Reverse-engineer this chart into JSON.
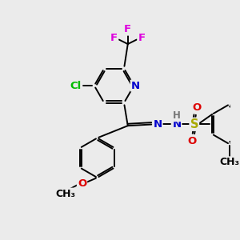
{
  "background_color": "#ebebeb",
  "bond_color": "#000000",
  "atom_colors": {
    "F": "#dd00dd",
    "Cl": "#00bb00",
    "N": "#0000cc",
    "O": "#dd0000",
    "S": "#aaaa00",
    "H": "#777777"
  },
  "font_size": 9.5,
  "figsize": [
    3.0,
    3.0
  ],
  "dpi": 100
}
